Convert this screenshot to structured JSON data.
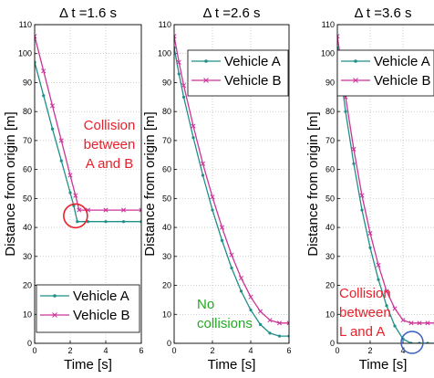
{
  "chart_data": [
    {
      "type": "line",
      "title": "Δ t =1.6 s",
      "xlabel": "Time [s]",
      "ylabel": "Distance from origin [m]",
      "xlim": [
        0,
        6
      ],
      "ylim": [
        0,
        110
      ],
      "xticks": [
        0,
        2,
        4,
        6
      ],
      "yticks": [
        0,
        10,
        20,
        30,
        40,
        50,
        60,
        70,
        80,
        90,
        100,
        110
      ],
      "grid": true,
      "legend_position": "bottom-left",
      "annotation": {
        "lines": [
          "Collision",
          "between",
          "A and B"
        ],
        "color": "#e8202a",
        "at": {
          "x": 2.3,
          "y": 44
        }
      },
      "series": [
        {
          "name": "Vehicle A",
          "color": "#1f8f88",
          "marker": "dot",
          "x": [
            0,
            0.5,
            1.0,
            1.5,
            2.0,
            2.2,
            2.4,
            3.0,
            4.0,
            5.0,
            6.0
          ],
          "y": [
            97,
            85.5,
            74,
            63,
            52,
            47.5,
            42,
            42,
            42,
            42,
            42
          ]
        },
        {
          "name": "Vehicle B",
          "color": "#cc3399",
          "marker": "x",
          "x": [
            0,
            0.5,
            1.0,
            1.5,
            2.0,
            2.3,
            2.5,
            3.0,
            4.0,
            5.0,
            6.0
          ],
          "y": [
            106,
            94,
            82,
            70,
            58,
            51,
            46,
            46,
            46,
            46,
            46
          ]
        }
      ]
    },
    {
      "type": "line",
      "title": "Δ t =2.6 s",
      "xlabel": "Time [s]",
      "ylabel": "Distance from origin [m]",
      "xlim": [
        0,
        6
      ],
      "ylim": [
        0,
        110
      ],
      "xticks": [
        0,
        2,
        4,
        6
      ],
      "yticks": [
        0,
        10,
        20,
        30,
        40,
        50,
        60,
        70,
        80,
        90,
        100,
        110
      ],
      "grid": true,
      "legend_position": "top-right",
      "annotation": {
        "lines": [
          "No",
          "collisions"
        ],
        "color": "#22aa22",
        "at": {
          "x": 0.3,
          "y": 10
        }
      },
      "series": [
        {
          "name": "Vehicle A",
          "color": "#1f8f88",
          "marker": "dot",
          "x": [
            0,
            0.25,
            0.5,
            1.0,
            1.5,
            2.0,
            2.5,
            3.0,
            3.5,
            4.0,
            4.5,
            5.0,
            5.5,
            6.0
          ],
          "y": [
            102,
            93,
            85,
            71,
            58,
            46,
            35.5,
            26,
            18,
            11.5,
            6.5,
            3.5,
            2.5,
            2.5
          ]
        },
        {
          "name": "Vehicle B",
          "color": "#cc3399",
          "marker": "x",
          "x": [
            0,
            0.25,
            0.5,
            1.0,
            1.5,
            2.0,
            2.5,
            3.0,
            3.5,
            4.0,
            4.5,
            5.0,
            5.5,
            6.0
          ],
          "y": [
            106,
            97,
            89,
            75,
            62,
            50.5,
            40,
            30.5,
            22.5,
            16,
            11,
            8,
            7,
            7
          ]
        }
      ]
    },
    {
      "type": "line",
      "title": "Δ t =3.6 s",
      "xlabel": "Time [s]",
      "ylabel": "Distance from origin [m]",
      "xlim": [
        0,
        6
      ],
      "ylim": [
        0,
        110
      ],
      "xticks": [
        0,
        2,
        4,
        6
      ],
      "yticks": [
        0,
        10,
        20,
        30,
        40,
        50,
        60,
        70,
        80,
        90,
        100,
        110
      ],
      "grid": true,
      "legend_position": "top-right",
      "annotation": {
        "lines": [
          "Collision",
          "between",
          "L and A"
        ],
        "color": "#e8202a",
        "at": {
          "x": 0.1,
          "y": 18
        }
      },
      "series": [
        {
          "name": "Vehicle A",
          "color": "#1f8f88",
          "marker": "dot",
          "x": [
            0,
            0.25,
            0.5,
            1.0,
            1.5,
            2.0,
            2.5,
            3.0,
            3.5,
            4.0,
            4.5,
            5.0,
            5.5,
            6.0
          ],
          "y": [
            102,
            91,
            80,
            62,
            46,
            33,
            22,
            13,
            6,
            1.5,
            0,
            0,
            0,
            0
          ]
        },
        {
          "name": "Vehicle B",
          "color": "#cc3399",
          "marker": "x",
          "x": [
            0,
            0.25,
            0.5,
            1.0,
            1.5,
            2.0,
            2.5,
            3.0,
            3.5,
            4.0,
            4.5,
            5.0,
            5.5,
            6.0
          ],
          "y": [
            106,
            96,
            85,
            67,
            51,
            38,
            27,
            18,
            12,
            8,
            7,
            7,
            7,
            7
          ]
        }
      ]
    }
  ]
}
